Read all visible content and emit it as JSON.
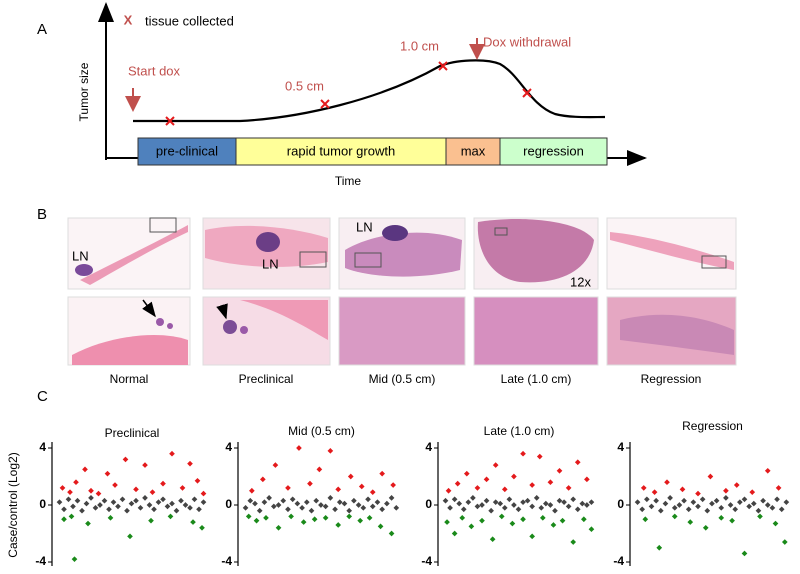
{
  "panel_labels": [
    "A",
    "B",
    "C"
  ],
  "panel_a": {
    "legend_marker": "X",
    "legend": "tissue collected",
    "y_axis_label": "Tumor size",
    "x_axis_label": "Time",
    "annotations": {
      "start": "Start dox",
      "half": "0.5 cm",
      "one": "1.0 cm",
      "withdrawal": "Dox withdrawal"
    },
    "phases": [
      {
        "label": "pre-clinical",
        "color": "#4f81bd"
      },
      {
        "label": "rapid tumor growth",
        "color": "#ffff99"
      },
      {
        "label": "max",
        "color": "#fac090"
      },
      {
        "label": "regression",
        "color": "#ccffcc"
      }
    ]
  },
  "panel_b": {
    "captions": [
      "Normal",
      "Preclinical",
      "Mid (0.5 cm)",
      "Late (1.0 cm)",
      "Regression"
    ],
    "ln_label": "LN",
    "magnification": "12x"
  },
  "chart_data": [
    {
      "type": "scatter",
      "title": "Preclinical",
      "y_label": "Case/control (Log2)",
      "xlim": [
        0,
        100
      ],
      "ylim": [
        -4,
        4
      ],
      "yticks": [
        -4,
        0,
        4
      ],
      "series": [
        {
          "color": "#e41a1c",
          "x": [
            3,
            8,
            12,
            18,
            22,
            27,
            33,
            38,
            45,
            52,
            58,
            63,
            70,
            76,
            83,
            88,
            93,
            97
          ],
          "values": [
            1.2,
            0.9,
            1.6,
            2.5,
            1.0,
            0.8,
            2.2,
            1.4,
            3.2,
            1.1,
            2.8,
            0.9,
            1.5,
            3.6,
            1.2,
            2.9,
            1.7,
            0.8
          ]
        },
        {
          "color": "#444444",
          "x": [
            1,
            4,
            7,
            10,
            13,
            16,
            19,
            22,
            25,
            28,
            31,
            34,
            37,
            40,
            43,
            46,
            49,
            52,
            55,
            58,
            61,
            64,
            67,
            70,
            73,
            76,
            79,
            82,
            85,
            88,
            91,
            94,
            97
          ],
          "values": [
            0.2,
            -0.3,
            0.4,
            -0.1,
            0.3,
            -0.4,
            0.1,
            0.5,
            -0.2,
            0.0,
            0.3,
            -0.3,
            0.2,
            -0.1,
            0.4,
            -0.4,
            0.1,
            0.3,
            -0.2,
            0.5,
            0.0,
            -0.3,
            0.2,
            0.4,
            -0.1,
            0.1,
            -0.4,
            0.3,
            0.0,
            -0.2,
            0.4,
            -0.3,
            0.2
          ]
        },
        {
          "color": "#1a8a1a",
          "x": [
            4,
            9,
            11,
            20,
            35,
            48,
            62,
            75,
            90,
            96
          ],
          "values": [
            -1.0,
            -0.8,
            -3.8,
            -1.3,
            -0.9,
            -2.2,
            -1.1,
            -0.8,
            -1.2,
            -1.6
          ]
        }
      ]
    },
    {
      "type": "scatter",
      "title": "Mid (0.5 cm)",
      "xlim": [
        0,
        100
      ],
      "ylim": [
        -4,
        4
      ],
      "yticks": [
        -4,
        0,
        4
      ],
      "series": [
        {
          "color": "#e41a1c",
          "x": [
            5,
            12,
            20,
            28,
            35,
            42,
            48,
            55,
            60,
            68,
            75,
            82,
            88,
            95
          ],
          "values": [
            1.0,
            1.8,
            2.8,
            1.2,
            4.0,
            1.5,
            2.5,
            3.8,
            1.1,
            2.0,
            1.3,
            0.9,
            2.2,
            1.4
          ]
        },
        {
          "color": "#444444",
          "x": [
            1,
            4,
            7,
            10,
            13,
            16,
            19,
            22,
            25,
            28,
            31,
            34,
            37,
            40,
            43,
            46,
            49,
            52,
            55,
            58,
            61,
            64,
            67,
            70,
            73,
            76,
            79,
            82,
            85,
            88,
            91,
            94,
            97
          ],
          "values": [
            -0.2,
            0.3,
            0.1,
            -0.4,
            0.2,
            0.5,
            -0.1,
            0.0,
            0.3,
            -0.3,
            0.4,
            0.1,
            -0.2,
            0.2,
            -0.4,
            0.3,
            0.0,
            -0.1,
            0.5,
            -0.3,
            0.2,
            0.1,
            -0.4,
            0.3,
            0.0,
            -0.2,
            0.4,
            -0.1,
            0.2,
            -0.3,
            0.1,
            0.5,
            -0.2
          ]
        },
        {
          "color": "#1a8a1a",
          "x": [
            3,
            8,
            14,
            22,
            30,
            38,
            45,
            52,
            60,
            67,
            74,
            80,
            87,
            94
          ],
          "values": [
            -0.8,
            -1.1,
            -0.9,
            -1.6,
            -0.8,
            -1.2,
            -1.0,
            -0.9,
            -1.4,
            -0.8,
            -1.1,
            -0.9,
            -1.5,
            -2.0
          ]
        }
      ]
    },
    {
      "type": "scatter",
      "title": "Late (1.0 cm)",
      "xlim": [
        0,
        100
      ],
      "ylim": [
        -4,
        4
      ],
      "yticks": [
        -4,
        0,
        4
      ],
      "series": [
        {
          "color": "#e41a1c",
          "x": [
            3,
            9,
            15,
            22,
            28,
            34,
            40,
            46,
            52,
            58,
            63,
            70,
            76,
            82,
            88,
            94
          ],
          "values": [
            1.0,
            1.5,
            2.2,
            1.2,
            1.8,
            2.8,
            1.1,
            2.0,
            3.6,
            1.4,
            3.4,
            1.6,
            2.4,
            1.2,
            3.0,
            1.8
          ]
        },
        {
          "color": "#444444",
          "x": [
            1,
            4,
            7,
            10,
            13,
            16,
            19,
            22,
            25,
            28,
            31,
            34,
            37,
            40,
            43,
            46,
            49,
            52,
            55,
            58,
            61,
            64,
            67,
            70,
            73,
            76,
            79,
            82,
            85,
            88,
            91,
            94,
            97
          ],
          "values": [
            0.3,
            -0.2,
            0.4,
            0.1,
            -0.3,
            0.2,
            0.5,
            -0.1,
            0.0,
            0.3,
            -0.4,
            0.2,
            0.1,
            -0.2,
            0.4,
            0.0,
            -0.3,
            0.2,
            0.3,
            -0.1,
            0.5,
            -0.2,
            0.1,
            0.0,
            -0.4,
            0.3,
            0.2,
            -0.1,
            0.4,
            -0.3,
            0.1,
            0.0,
            0.2
          ]
        },
        {
          "color": "#1a8a1a",
          "x": [
            2,
            7,
            12,
            18,
            25,
            32,
            38,
            45,
            52,
            58,
            65,
            72,
            78,
            85,
            92,
            97
          ],
          "values": [
            -1.2,
            -2.0,
            -0.9,
            -1.5,
            -1.1,
            -2.4,
            -0.8,
            -1.3,
            -1.0,
            -2.2,
            -0.9,
            -1.4,
            -1.1,
            -2.6,
            -1.0,
            -1.7
          ]
        }
      ]
    },
    {
      "type": "scatter",
      "title": "Regression",
      "xlim": [
        0,
        100
      ],
      "ylim": [
        -4,
        4
      ],
      "yticks": [
        -4,
        0,
        4
      ],
      "series": [
        {
          "color": "#e41a1c",
          "x": [
            5,
            12,
            20,
            30,
            40,
            48,
            58,
            65,
            75,
            85,
            92
          ],
          "values": [
            1.2,
            0.9,
            1.6,
            1.1,
            0.8,
            2.0,
            1.0,
            1.4,
            0.9,
            2.4,
            1.2
          ]
        },
        {
          "color": "#444444",
          "x": [
            1,
            4,
            7,
            10,
            13,
            16,
            19,
            22,
            25,
            28,
            31,
            34,
            37,
            40,
            43,
            46,
            49,
            52,
            55,
            58,
            61,
            64,
            67,
            70,
            73,
            76,
            79,
            82,
            85,
            88,
            91,
            94,
            97
          ],
          "values": [
            0.2,
            -0.3,
            0.4,
            -0.1,
            0.3,
            -0.4,
            0.1,
            0.5,
            -0.2,
            0.0,
            0.3,
            -0.3,
            0.2,
            -0.1,
            0.4,
            -0.4,
            0.1,
            0.3,
            -0.2,
            0.5,
            0.0,
            -0.3,
            0.2,
            0.4,
            -0.1,
            0.1,
            -0.4,
            0.3,
            0.0,
            -0.2,
            0.4,
            -0.3,
            0.2
          ]
        },
        {
          "color": "#1a8a1a",
          "x": [
            6,
            15,
            25,
            35,
            45,
            55,
            62,
            70,
            80,
            90,
            96
          ],
          "values": [
            -1.0,
            -3.0,
            -0.8,
            -1.2,
            -1.6,
            -0.9,
            -1.1,
            -3.4,
            -0.8,
            -1.3,
            -2.6
          ]
        }
      ]
    }
  ]
}
